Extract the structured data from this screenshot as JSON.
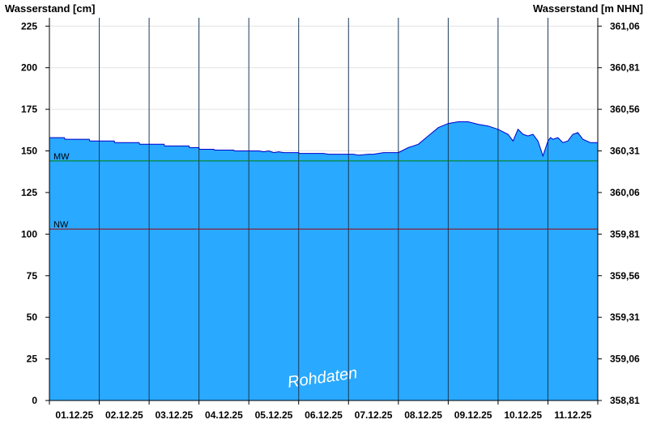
{
  "chart_data": {
    "type": "area",
    "left_axis_title": "Wasserstand [cm]",
    "right_axis_title": "Wasserstand [m NHN]",
    "y_left": {
      "range": [
        0,
        230
      ],
      "ticks": [
        0,
        25,
        50,
        75,
        100,
        125,
        150,
        175,
        200,
        225
      ]
    },
    "y_right": {
      "range": [
        358.81,
        361.11
      ],
      "ticks": [
        "358,81",
        "359,06",
        "359,31",
        "359,56",
        "359,81",
        "360,06",
        "360,31",
        "360,56",
        "360,81",
        "361,06"
      ]
    },
    "x_range": [
      0,
      11
    ],
    "x_tick_labels": [
      "01.12.25",
      "02.12.25",
      "03.12.25",
      "04.12.25",
      "05.12.25",
      "06.12.25",
      "07.12.25",
      "08.12.25",
      "09.12.25",
      "10.12.25",
      "11.12.25"
    ],
    "grid_vertical": true,
    "reference_lines": [
      {
        "label": "MW",
        "value": 144,
        "color": "#008000"
      },
      {
        "label": "NW",
        "value": 103,
        "color": "#a00000"
      }
    ],
    "fill_color": "#29a9ff",
    "line_color": "#0000cc",
    "watermark": "Rohdaten",
    "series": [
      {
        "x": [
          0,
          0.3,
          0.31,
          0.8,
          0.81,
          1.3,
          1.31,
          1.8,
          1.81,
          2.3,
          2.31,
          2.8,
          2.81,
          3.0,
          3.01,
          3.3,
          3.31,
          3.7,
          3.71,
          4.2,
          4.3,
          4.4,
          4.5,
          4.6,
          4.7,
          5.0,
          5.01,
          5.5,
          5.6,
          6.0,
          6.1,
          6.2,
          6.4,
          6.5,
          6.7,
          7.0,
          7.2,
          7.4,
          7.6,
          7.8,
          8.0,
          8.2,
          8.4,
          8.6,
          8.8,
          9.0,
          9.2,
          9.3,
          9.4,
          9.5,
          9.6,
          9.7,
          9.8,
          9.9,
          10.0,
          10.05,
          10.1,
          10.2,
          10.3,
          10.4,
          10.5,
          10.6,
          10.7,
          10.85,
          11.0
        ],
        "y": [
          158,
          158,
          157,
          157,
          156,
          156,
          155,
          155,
          154,
          154,
          153,
          153,
          152,
          152,
          151,
          151,
          150.5,
          150.5,
          150,
          150,
          149.5,
          150,
          149,
          149.5,
          149,
          149,
          148.5,
          148.5,
          148,
          148,
          148,
          147.5,
          148,
          148,
          149,
          149,
          152,
          154,
          159,
          164,
          166.5,
          167.5,
          167.5,
          166,
          165,
          163,
          160,
          156,
          163,
          160,
          159,
          160,
          156,
          147,
          156,
          158,
          157,
          158,
          155,
          156,
          160,
          161,
          157,
          155,
          155
        ]
      }
    ]
  }
}
